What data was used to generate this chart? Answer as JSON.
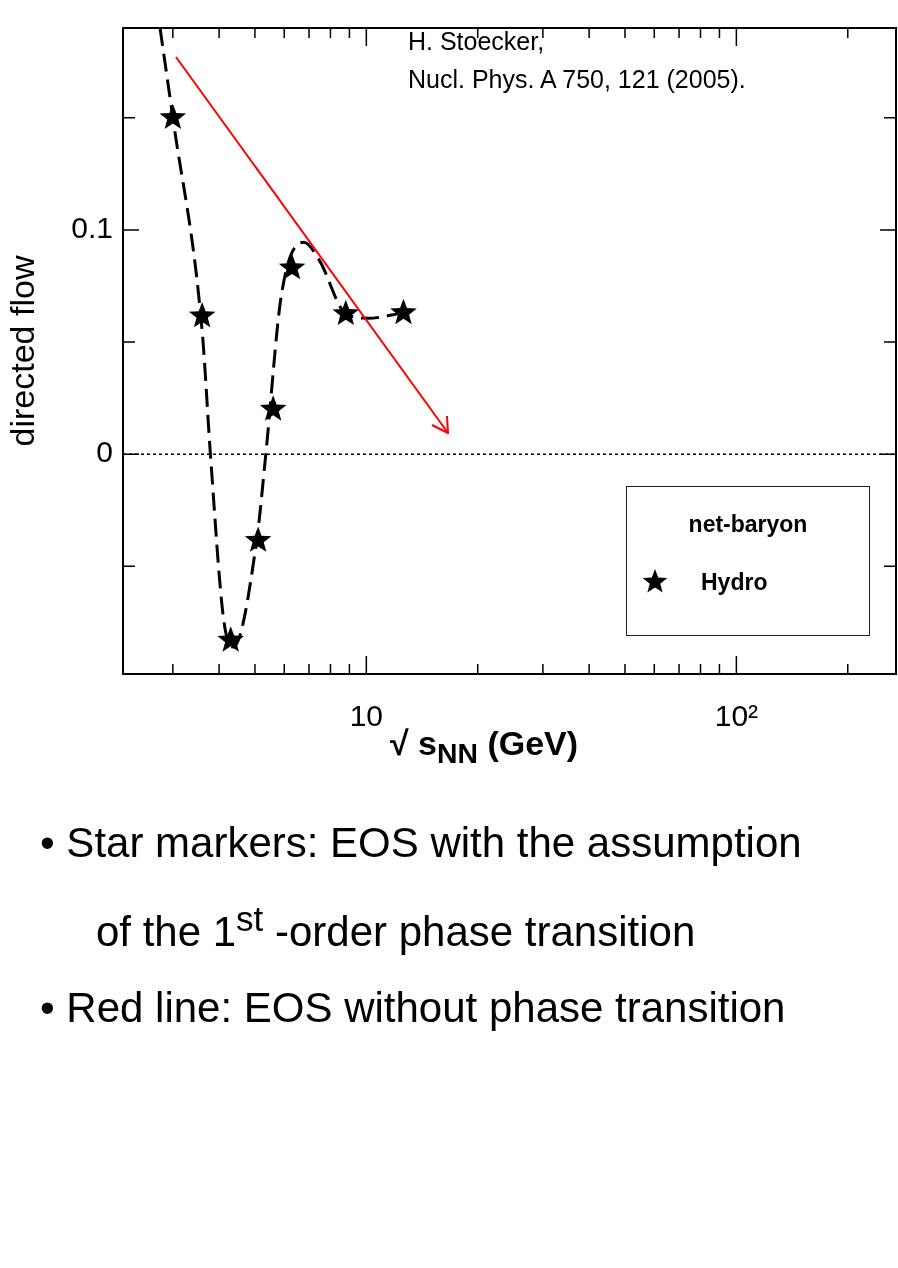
{
  "chart_data": {
    "type": "line",
    "xlabel": "√ s$_{NN}$ (GeV)",
    "ylabel": "directed flow",
    "log": "x",
    "xlim": [
      2.2,
      270
    ],
    "ylim": [
      -0.098,
      0.19
    ],
    "xticks": [
      {
        "value": 3,
        "label": null
      },
      {
        "value": 4,
        "label": null
      },
      {
        "value": 5,
        "label": null
      },
      {
        "value": 6,
        "label": null
      },
      {
        "value": 7,
        "label": null
      },
      {
        "value": 8,
        "label": null
      },
      {
        "value": 9,
        "label": null
      },
      10,
      {
        "value": 20,
        "label": null
      },
      {
        "value": 30,
        "label": null
      },
      {
        "value": 40,
        "label": null
      },
      {
        "value": 50,
        "label": null
      },
      {
        "value": 60,
        "label": null
      },
      {
        "value": 70,
        "label": null
      },
      {
        "value": 80,
        "label": null
      },
      {
        "value": 90,
        "label": null
      },
      {
        "value": 100,
        "label": "10²"
      },
      {
        "value": 200,
        "label": null
      }
    ],
    "yticks": [
      {
        "value": -0.05,
        "label": null
      },
      0,
      {
        "value": 0.05,
        "label": null
      },
      0.1,
      {
        "value": 0.15,
        "label": null
      }
    ],
    "grid": false,
    "legend": "bottom right",
    "legend_title": "net-baryon",
    "series": [
      {
        "type": "line",
        "line_style": "dashed",
        "marker": "none",
        "color": "#000000",
        "x": [
          2.77,
          3.0,
          3.6,
          3.79,
          4.11,
          4.37,
          5.05,
          5.35,
          5.89,
          6.78,
          7.46,
          8.8,
          10.1,
          12.6
        ],
        "values": [
          0.19,
          0.15,
          0.055,
          0,
          -0.073,
          -0.086,
          -0.039,
          0,
          0.0706,
          0.0945,
          0.0865,
          0.0626,
          0.0606,
          0.063
        ]
      },
      {
        "type": "scatter",
        "name": "Hydro",
        "marker": "star",
        "color": "#000000",
        "x": [
          3.0,
          3.6,
          4.3,
          5.1,
          5.6,
          6.3,
          8.8,
          12.6
        ],
        "values": [
          0.15,
          0.0616,
          -0.083,
          -0.0385,
          0.02,
          0.083,
          0.0626,
          0.063
        ]
      }
    ],
    "ref_lines": [
      {
        "axis": "y",
        "value": 0,
        "line_style": "dotted",
        "color": "#000000"
      }
    ],
    "annotations": [
      "H. Stoecker,\nNucl. Phys. A 750, 121 (2005).",
      "• Star markers:  EOS with the assumption of the 1$^{st}$ -order phase transition",
      "• Red line: EOS without phase transition"
    ]
  }
}
